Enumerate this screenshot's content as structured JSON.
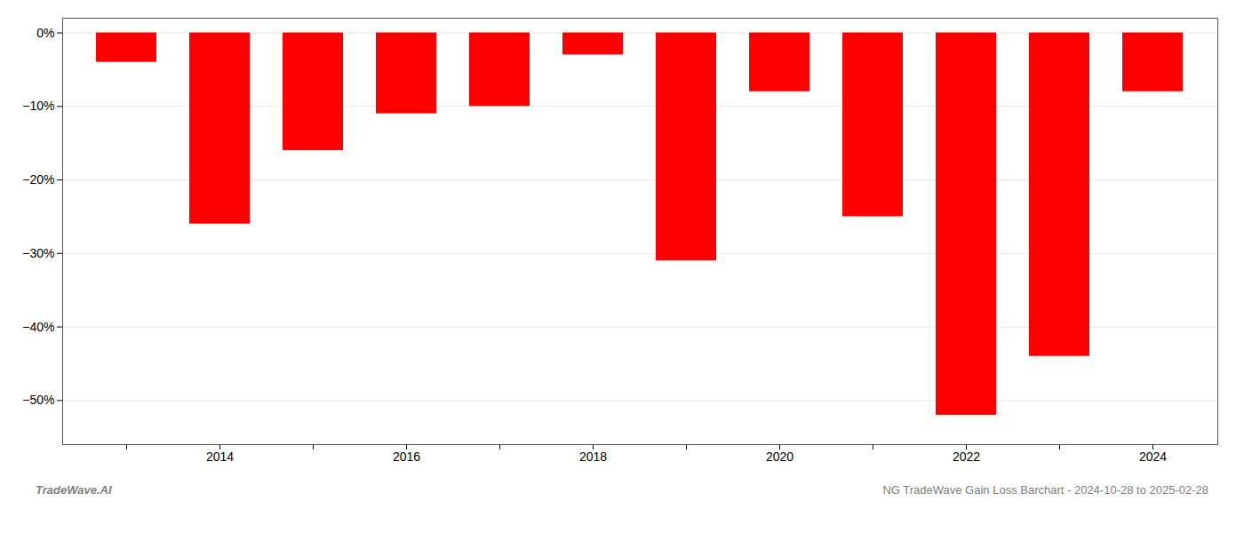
{
  "chart_data": {
    "type": "bar",
    "categories": [
      null,
      "2014",
      null,
      "2016",
      null,
      "2018",
      null,
      "2020",
      null,
      "2022",
      null,
      "2024"
    ],
    "values": [
      -4.0,
      -26.0,
      -16.0,
      -11.0,
      -10.0,
      -3.0,
      -31.0,
      -8.0,
      -25.0,
      -52.0,
      -44.0,
      -8.0
    ],
    "color": "#ff0000",
    "ylim": [
      -56,
      2
    ],
    "yticks": [
      {
        "value": 0,
        "label": "0%"
      },
      {
        "value": -10,
        "label": "−10%"
      },
      {
        "value": -20,
        "label": "−20%"
      },
      {
        "value": -30,
        "label": "−30%"
      },
      {
        "value": -40,
        "label": "−40%"
      },
      {
        "value": -50,
        "label": "−50%"
      }
    ],
    "grid": true,
    "annotations": [
      "TradeWave.AI",
      "NG TradeWave Gain Loss Barchart - 2024-10-28 to 2025-02-28"
    ]
  }
}
